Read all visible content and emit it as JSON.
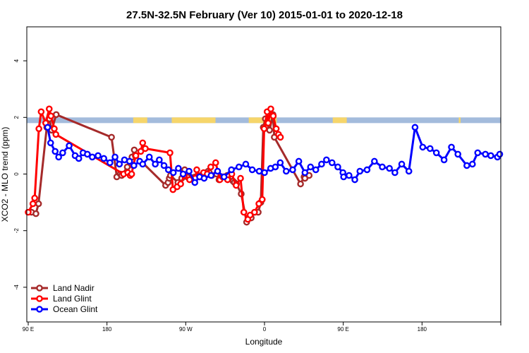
{
  "chart_data": {
    "type": "line",
    "title": "27.5N-32.5N February (Ver 10)   2015-01-01 to 2020-12-18",
    "xlabel": "Longitude",
    "ylabel": "XCO2 - MLO trend (ppm)",
    "xlim": [
      -90,
      180
    ],
    "ylim": [
      -5.2,
      5.2
    ],
    "x_ticks": [
      -90,
      -45,
      0,
      45,
      90,
      135,
      180
    ],
    "x_tick_labels": [
      "90 E",
      "180",
      "90 W",
      "0",
      "90 E",
      "180",
      ""
    ],
    "y_ticks": [
      -4,
      -2,
      0,
      2,
      4
    ],
    "y_tick_labels": [
      "-4",
      "-2",
      "0",
      "2",
      "4"
    ],
    "grid": false,
    "legend_position": "bottom-left",
    "land_ocean_band": {
      "y_range": [
        1.8,
        2.0
      ],
      "ocean_color": "#a3bbdc",
      "land_color": "#f6d56a",
      "land_x_ranges": [
        [
          -30,
          -22
        ],
        [
          -8,
          17
        ],
        [
          36,
          52
        ],
        [
          84,
          92
        ],
        [
          156,
          157
        ]
      ]
    },
    "series": [
      {
        "name": "Land Nadir",
        "color": "#a52a2a",
        "x": [
          -88.1,
          -85.6,
          -84.1,
          -79.4,
          -77.9,
          -76.6,
          -74,
          -42.4,
          -39.4,
          -37.4,
          -36.6,
          -33.4,
          -30.7,
          -29.4,
          -28.8,
          -11.5,
          -10.1,
          -9.4,
          -8.7,
          -4.5,
          -2.3,
          -0.6,
          0.8,
          12.8,
          13.5,
          14.9,
          17.6,
          19,
          21.7,
          23.7,
          27,
          27.8,
          29,
          31.7,
          34.8,
          37.4,
          39.4,
          41.4,
          42.9,
          44.3,
          45.5,
          47.9,
          49.8,
          50.6,
          65.6,
          67.6,
          68.1,
          70.5
        ],
        "y": [
          -1.35,
          -1.4,
          -1.05,
          1.65,
          1.95,
          1.55,
          2.1,
          1.3,
          -0.1,
          0.0,
          -0.05,
          0.25,
          0.6,
          0.85,
          0.65,
          -0.4,
          -0.3,
          -0.15,
          -0.05,
          -0.3,
          -0.15,
          0.15,
          -0.1,
          0.1,
          0.05,
          -0.05,
          0.0,
          -0.2,
          -0.1,
          -0.05,
          -0.25,
          -0.3,
          -0.35,
          -0.7,
          -1.7,
          -1.55,
          -1.35,
          -1.35,
          -1.0,
          1.65,
          1.95,
          1.55,
          2.1,
          1.3,
          -0.35,
          -0.1,
          -0.15,
          -0.05
        ]
      },
      {
        "name": "Land Glint",
        "color": "#ff0000",
        "x": [
          -90,
          -87.3,
          -86.3,
          -83.9,
          -82.6,
          -80,
          -78,
          -77,
          -75.1,
          -74.2,
          -35.5,
          -33.1,
          -31.7,
          -30.9,
          -30,
          -28.5,
          -25.7,
          -24.6,
          -23.1,
          -9,
          -7.3,
          -4.9,
          -2.9,
          -0.8,
          2.2,
          5.4,
          6.3,
          8,
          10.2,
          12.3,
          14.3,
          17.1,
          19.5,
          21,
          23.9,
          26.3,
          28.8,
          31.3,
          33.2,
          35.5,
          36.8,
          39.3,
          41.8,
          43.7,
          44.8,
          46.5,
          47.1,
          48.6,
          50,
          51.7,
          53,
          54.1
        ],
        "y": [
          -1.35,
          -1.05,
          -0.85,
          1.6,
          2.2,
          1.8,
          2.3,
          2.05,
          1.6,
          1.4,
          0.0,
          0.05,
          -0.05,
          0.0,
          0.3,
          0.65,
          0.8,
          1.1,
          0.9,
          0.75,
          -0.55,
          -0.45,
          -0.35,
          -0.05,
          -0.2,
          -0.15,
          0.15,
          -0.1,
          0.05,
          0.0,
          0.25,
          0.4,
          -0.2,
          -0.1,
          -0.2,
          0.0,
          -0.4,
          -0.15,
          -1.35,
          -1.6,
          -1.45,
          -1.35,
          -1.05,
          -0.9,
          1.6,
          2.2,
          1.8,
          2.3,
          2.05,
          1.6,
          1.4,
          1.3
        ]
      },
      {
        "name": "Ocean Glint",
        "color": "#0000ff",
        "x": [
          -78.9,
          -77.2,
          -74.6,
          -72.6,
          -70.3,
          -66.6,
          -63.2,
          -61.1,
          -58.7,
          -56.2,
          -53.4,
          -50.1,
          -46.8,
          -43.3,
          -40.4,
          -37.9,
          -35,
          -32.1,
          -29.6,
          -26.3,
          -24.6,
          -20.8,
          -17.4,
          -15.1,
          -12.4,
          -9.9,
          -7.1,
          -4.2,
          -1.5,
          1.9,
          5.2,
          7.9,
          10.5,
          14.5,
          18.2,
          21.9,
          26.1,
          30.4,
          34.3,
          38,
          42,
          45,
          48.5,
          51.2,
          54,
          57.4,
          61.1,
          64.6,
          68.1,
          71.3,
          74.3,
          77.6,
          80.4,
          83.6,
          86.9,
          89.8,
          90.2,
          93.3,
          96.6,
          99.5,
          103.6,
          107.8,
          112.3,
          116.4,
          119.5,
          123.4,
          127.5,
          131,
          135.4,
          139.6,
          143.2,
          147.6,
          151.8,
          155.5,
          160.6,
          163.8,
          166.8,
          171.2,
          174.3,
          178.1,
          179.4
        ],
        "y": [
          1.65,
          1.1,
          0.8,
          0.6,
          0.75,
          1.0,
          0.65,
          0.55,
          0.75,
          0.7,
          0.6,
          0.65,
          0.55,
          0.4,
          0.6,
          0.35,
          0.5,
          0.45,
          0.3,
          0.45,
          0.35,
          0.6,
          0.35,
          0.5,
          0.3,
          0.15,
          0.05,
          0.2,
          0.0,
          0.1,
          -0.3,
          -0.1,
          -0.15,
          -0.05,
          0.1,
          -0.1,
          0.15,
          0.25,
          0.35,
          0.15,
          0.1,
          0.05,
          0.2,
          0.25,
          0.4,
          0.1,
          0.15,
          0.45,
          0.05,
          0.25,
          0.15,
          0.35,
          0.5,
          0.4,
          0.25,
          0.05,
          -0.1,
          -0.05,
          -0.2,
          0.1,
          0.15,
          0.45,
          0.25,
          0.2,
          0.05,
          0.35,
          0.1,
          1.65,
          0.95,
          0.9,
          0.75,
          0.5,
          0.95,
          0.7,
          0.3,
          0.35,
          0.75,
          0.7,
          0.65,
          0.6,
          0.7
        ]
      }
    ]
  }
}
